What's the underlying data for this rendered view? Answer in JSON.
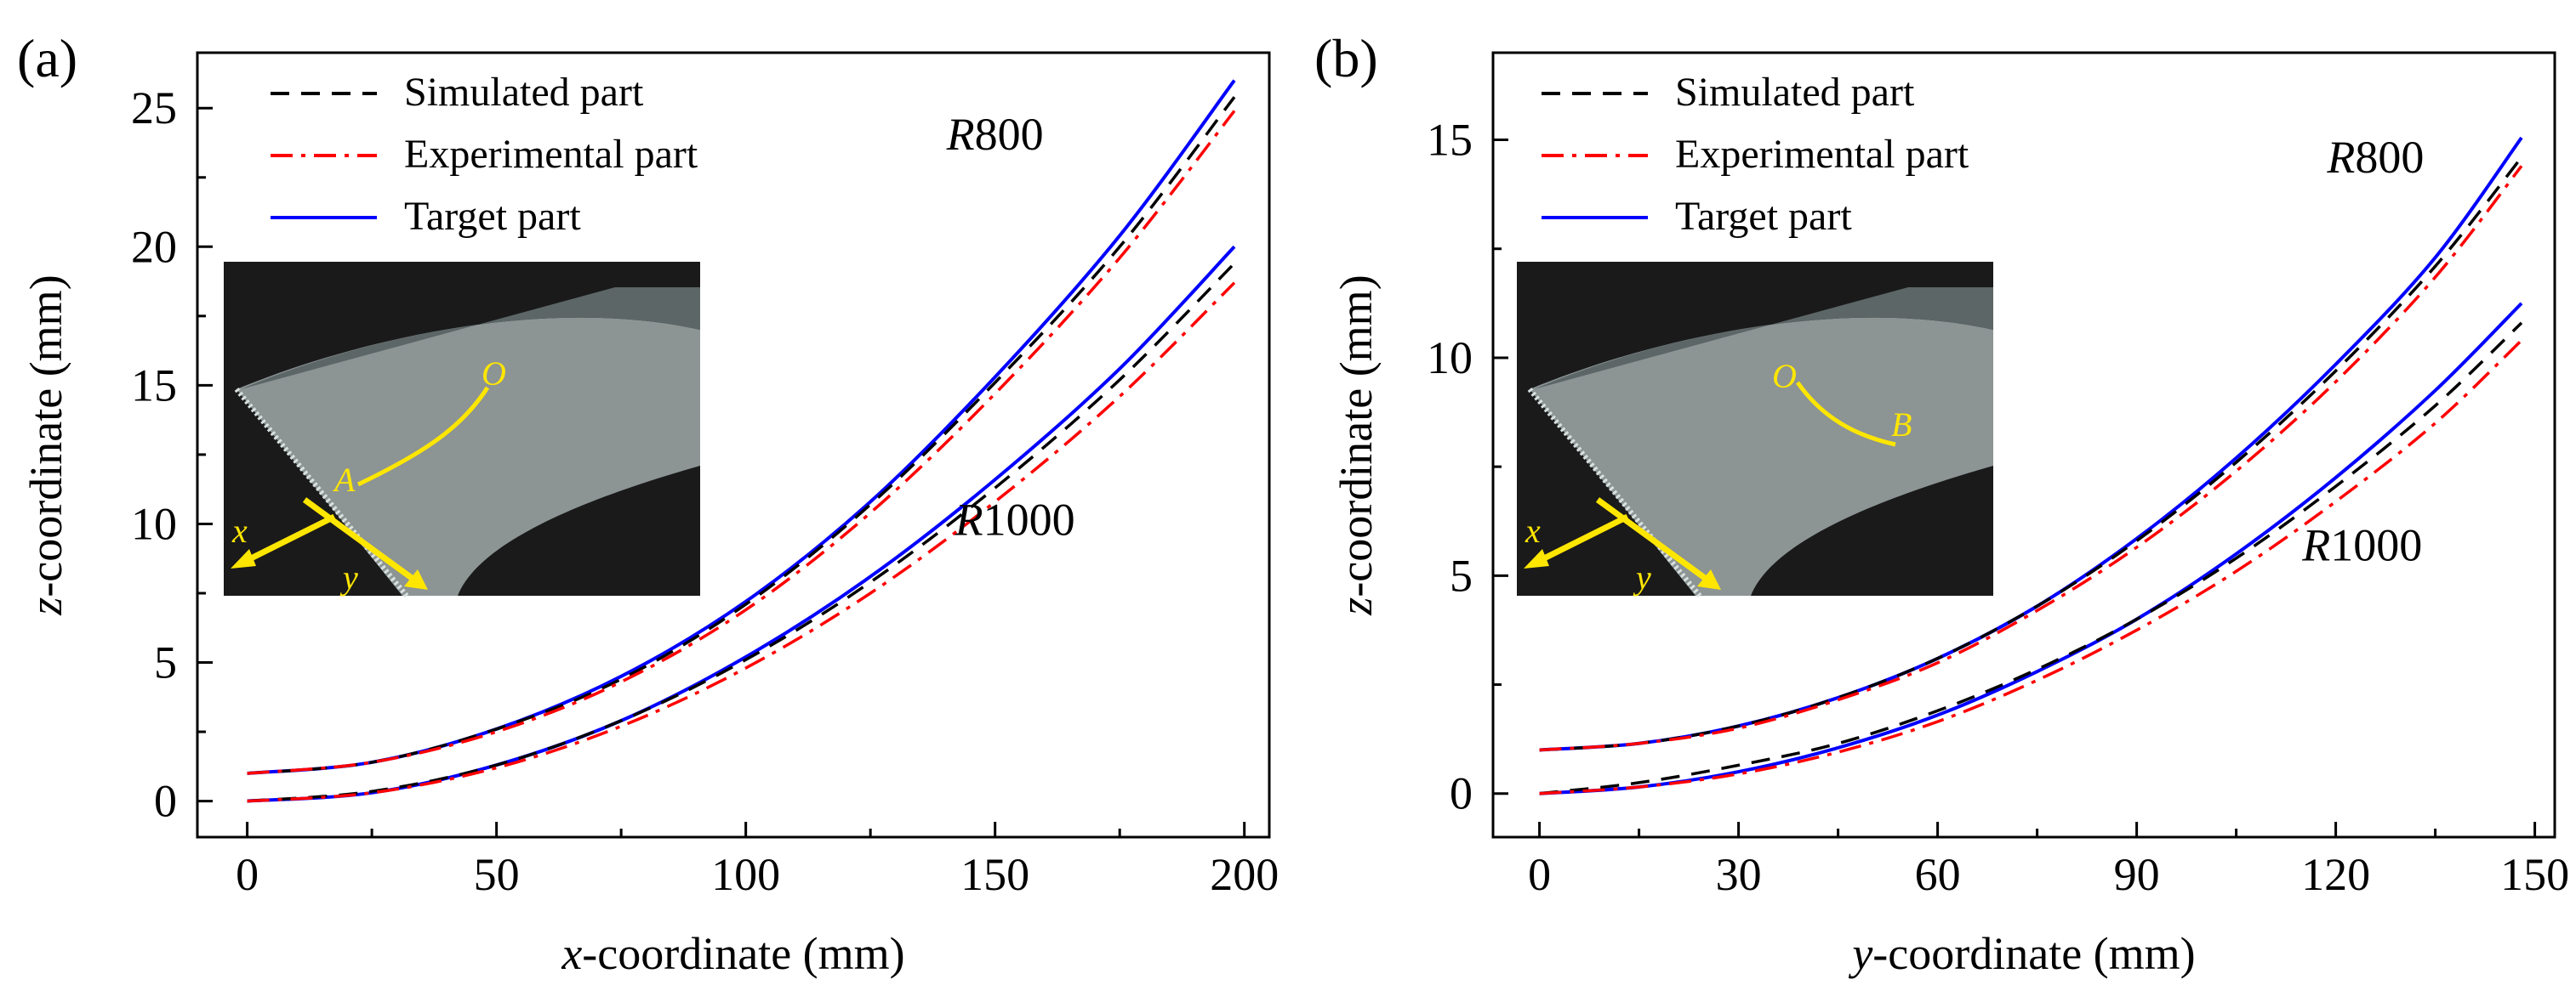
{
  "colors": {
    "simulated": "#000000",
    "experimental": "#ff0000",
    "target": "#0000ff",
    "inset_bg": "#1a1a1a",
    "inset_sheet": "#8c9494",
    "inset_annotation": "#ffe600"
  },
  "legend_entries": [
    {
      "key": "simulated",
      "label": "Simulated part",
      "style": "dash"
    },
    {
      "key": "experimental",
      "label": "Experimental part",
      "style": "dashdot"
    },
    {
      "key": "target",
      "label": "Target part",
      "style": "solid"
    }
  ],
  "chart_data": [
    {
      "type": "line",
      "panel_label": "(a)",
      "xlabel_var": "x",
      "xlabel_rest": "-coordinate (mm)",
      "ylabel_var": "z",
      "ylabel_rest": "-coordinate (mm)",
      "xlim": [
        -10,
        205
      ],
      "ylim": [
        -1.3,
        27
      ],
      "xticks": [
        0,
        50,
        100,
        150,
        200
      ],
      "yticks": [
        0,
        5,
        10,
        15,
        20,
        25
      ],
      "curve_labels": [
        {
          "R": "R",
          "num": "800",
          "x": 150,
          "y": 23.5
        },
        {
          "R": "R",
          "num": "1000",
          "x": 154,
          "y": 9.6
        }
      ],
      "inset": {
        "label_O": "O",
        "label_end": "A",
        "arrow_x": "x",
        "arrow_y": "y"
      },
      "groups": [
        {
          "name": "R800",
          "x": [
            0,
            25,
            50,
            75,
            100,
            125,
            150,
            175,
            198
          ],
          "series": [
            {
              "key": "target",
              "values": [
                1.0,
                1.4,
                2.6,
                4.5,
                7.2,
                10.8,
                15.3,
                20.4,
                26.0
              ]
            },
            {
              "key": "simulated",
              "values": [
                1.0,
                1.4,
                2.6,
                4.4,
                7.1,
                10.7,
                15.1,
                20.0,
                25.4
              ]
            },
            {
              "key": "experimental",
              "values": [
                1.0,
                1.4,
                2.5,
                4.3,
                6.9,
                10.4,
                14.7,
                19.6,
                24.9
              ]
            }
          ]
        },
        {
          "name": "R1000",
          "x": [
            0,
            25,
            50,
            75,
            100,
            125,
            150,
            175,
            198
          ],
          "series": [
            {
              "key": "target",
              "values": [
                0.0,
                0.3,
                1.3,
                2.9,
                5.2,
                8.1,
                11.6,
                15.6,
                20.0
              ]
            },
            {
              "key": "simulated",
              "values": [
                0.0,
                0.35,
                1.3,
                2.9,
                5.1,
                7.9,
                11.3,
                15.2,
                19.4
              ]
            },
            {
              "key": "experimental",
              "values": [
                0.0,
                0.3,
                1.2,
                2.7,
                4.8,
                7.5,
                10.8,
                14.6,
                18.7
              ]
            }
          ]
        }
      ]
    },
    {
      "type": "line",
      "panel_label": "(b)",
      "xlabel_var": "y",
      "xlabel_rest": "-coordinate (mm)",
      "ylabel_var": "z",
      "ylabel_rest": "-coordinate (mm)",
      "xlim": [
        -7,
        153
      ],
      "ylim": [
        -1.0,
        17.0
      ],
      "xticks": [
        0,
        30,
        60,
        90,
        120,
        150
      ],
      "yticks": [
        0,
        5,
        10,
        15
      ],
      "curve_labels": [
        {
          "R": "R",
          "num": "800",
          "x": 126,
          "y": 14.25
        },
        {
          "R": "R",
          "num": "1000",
          "x": 124,
          "y": 5.35
        }
      ],
      "inset": {
        "label_O": "O",
        "label_end": "B",
        "arrow_x": "x",
        "arrow_y": "y"
      },
      "groups": [
        {
          "name": "R800",
          "x": [
            0,
            15,
            30,
            45,
            60,
            75,
            90,
            105,
            120,
            135,
            148
          ],
          "series": [
            {
              "key": "target",
              "values": [
                1.0,
                1.15,
                1.55,
                2.2,
                3.1,
                4.3,
                5.85,
                7.7,
                9.85,
                12.3,
                15.05
              ]
            },
            {
              "key": "simulated",
              "values": [
                1.0,
                1.15,
                1.55,
                2.2,
                3.1,
                4.3,
                5.8,
                7.6,
                9.7,
                12.1,
                14.6
              ]
            },
            {
              "key": "experimental",
              "values": [
                1.0,
                1.15,
                1.5,
                2.15,
                3.0,
                4.2,
                5.65,
                7.4,
                9.45,
                11.85,
                14.4
              ]
            }
          ]
        },
        {
          "name": "R1000",
          "x": [
            0,
            15,
            30,
            45,
            60,
            75,
            90,
            105,
            120,
            135,
            148
          ],
          "series": [
            {
              "key": "target",
              "values": [
                0.0,
                0.15,
                0.5,
                1.05,
                1.8,
                2.8,
                4.0,
                5.5,
                7.25,
                9.25,
                11.25
              ]
            },
            {
              "key": "simulated",
              "values": [
                0.0,
                0.25,
                0.65,
                1.15,
                1.9,
                2.85,
                4.0,
                5.4,
                7.05,
                8.9,
                10.8
              ]
            },
            {
              "key": "experimental",
              "values": [
                0.0,
                0.15,
                0.45,
                0.95,
                1.65,
                2.6,
                3.75,
                5.1,
                6.7,
                8.5,
                10.4
              ]
            }
          ]
        }
      ]
    }
  ]
}
